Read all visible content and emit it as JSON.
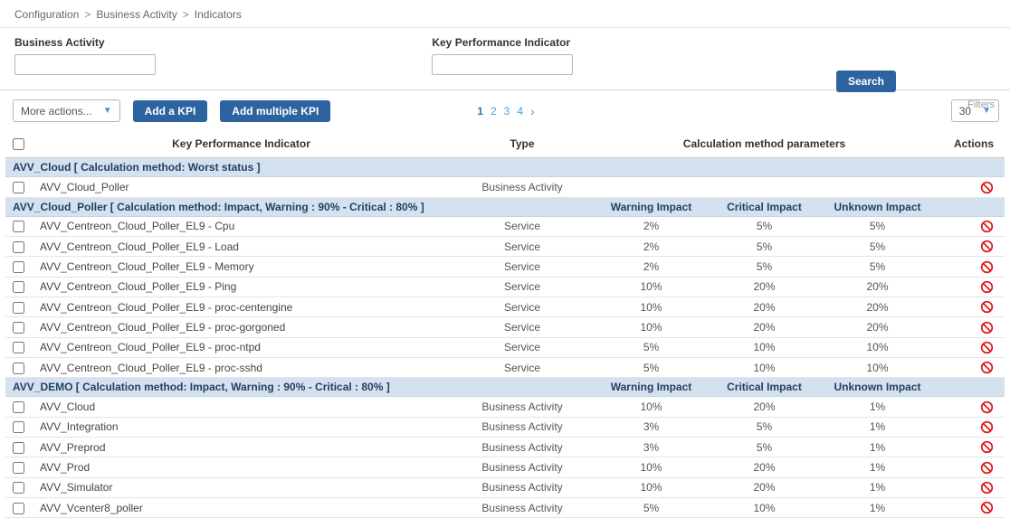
{
  "colors": {
    "primary_button": "#2d639e",
    "group_row_bg": "#d4e2f0",
    "pagination_link": "#4da1da",
    "pagination_current": "#2d75ad",
    "ban_icon_red": "#e01616"
  },
  "breadcrumb": {
    "separator": ">",
    "items": [
      "Configuration",
      "Business Activity",
      "Indicators"
    ]
  },
  "filters": {
    "business_activity": {
      "label": "Business Activity",
      "value": ""
    },
    "kpi": {
      "label": "Key Performance Indicator",
      "value": ""
    },
    "search_button": "Search",
    "filters_link": "Filters"
  },
  "toolbar": {
    "more_actions_select": "More actions...",
    "add_kpi_button": "Add a KPI",
    "add_multiple_kpi_button": "Add multiple KPI",
    "pagination": {
      "pages": [
        "1",
        "2",
        "3",
        "4"
      ],
      "current": "1",
      "next_symbol": "›"
    },
    "page_size_select": "30"
  },
  "table": {
    "headers": {
      "kpi": "Key Performance Indicator",
      "type": "Type",
      "calculation": "Calculation method parameters",
      "actions": "Actions"
    },
    "subheaders": {
      "warning": "Warning Impact",
      "critical": "Critical Impact",
      "unknown": "Unknown Impact"
    },
    "groups": [
      {
        "title": "AVV_Cloud [ Calculation method: Worst status ]",
        "show_subheaders": false,
        "rows": [
          {
            "name": "AVV_Cloud_Poller",
            "type": "Business Activity",
            "warning": "",
            "critical": "",
            "unknown": ""
          }
        ]
      },
      {
        "title": "AVV_Cloud_Poller [ Calculation method: Impact, Warning : 90% - Critical : 80% ]",
        "show_subheaders": true,
        "rows": [
          {
            "name": "AVV_Centreon_Cloud_Poller_EL9 - Cpu",
            "type": "Service",
            "warning": "2%",
            "critical": "5%",
            "unknown": "5%"
          },
          {
            "name": "AVV_Centreon_Cloud_Poller_EL9 - Load",
            "type": "Service",
            "warning": "2%",
            "critical": "5%",
            "unknown": "5%"
          },
          {
            "name": "AVV_Centreon_Cloud_Poller_EL9 - Memory",
            "type": "Service",
            "warning": "2%",
            "critical": "5%",
            "unknown": "5%"
          },
          {
            "name": "AVV_Centreon_Cloud_Poller_EL9 - Ping",
            "type": "Service",
            "warning": "10%",
            "critical": "20%",
            "unknown": "20%"
          },
          {
            "name": "AVV_Centreon_Cloud_Poller_EL9 - proc-centengine",
            "type": "Service",
            "warning": "10%",
            "critical": "20%",
            "unknown": "20%"
          },
          {
            "name": "AVV_Centreon_Cloud_Poller_EL9 - proc-gorgoned",
            "type": "Service",
            "warning": "10%",
            "critical": "20%",
            "unknown": "20%"
          },
          {
            "name": "AVV_Centreon_Cloud_Poller_EL9 - proc-ntpd",
            "type": "Service",
            "warning": "5%",
            "critical": "10%",
            "unknown": "10%"
          },
          {
            "name": "AVV_Centreon_Cloud_Poller_EL9 - proc-sshd",
            "type": "Service",
            "warning": "5%",
            "critical": "10%",
            "unknown": "10%"
          }
        ]
      },
      {
        "title": "AVV_DEMO [ Calculation method: Impact, Warning : 90% - Critical : 80% ]",
        "show_subheaders": true,
        "rows": [
          {
            "name": "AVV_Cloud",
            "type": "Business Activity",
            "warning": "10%",
            "critical": "20%",
            "unknown": "1%"
          },
          {
            "name": "AVV_Integration",
            "type": "Business Activity",
            "warning": "3%",
            "critical": "5%",
            "unknown": "1%"
          },
          {
            "name": "AVV_Preprod",
            "type": "Business Activity",
            "warning": "3%",
            "critical": "5%",
            "unknown": "1%"
          },
          {
            "name": "AVV_Prod",
            "type": "Business Activity",
            "warning": "10%",
            "critical": "20%",
            "unknown": "1%"
          },
          {
            "name": "AVV_Simulator",
            "type": "Business Activity",
            "warning": "10%",
            "critical": "20%",
            "unknown": "1%"
          },
          {
            "name": "AVV_Vcenter8_poller",
            "type": "Business Activity",
            "warning": "5%",
            "critical": "10%",
            "unknown": "1%"
          }
        ]
      }
    ]
  }
}
